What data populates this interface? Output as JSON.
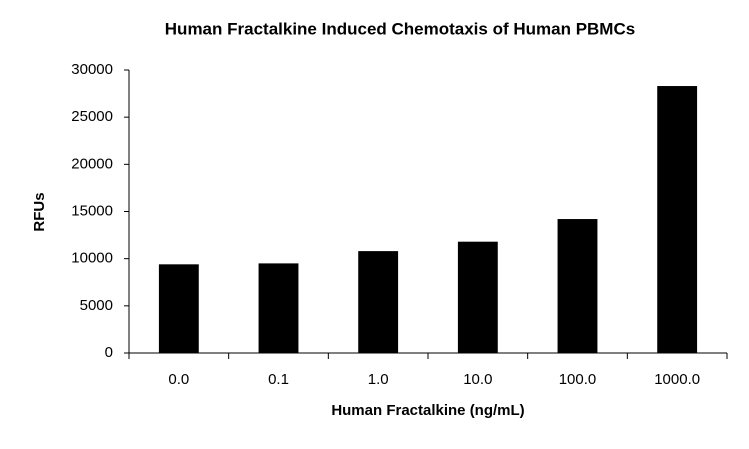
{
  "chart_data": {
    "type": "bar",
    "title": "Human Fractalkine Induced Chemotaxis of Human PBMCs",
    "x_label": "Human Fractalkine (ng/mL)",
    "y_label": "RFUs",
    "categories": [
      "0.0",
      "0.1",
      "1.0",
      "10.0",
      "100.0",
      "1000.0"
    ],
    "values": [
      9400,
      9500,
      10800,
      11800,
      14200,
      28300
    ],
    "color": "#000000",
    "ylim": [
      0,
      30000
    ],
    "yticks": [
      0,
      5000,
      10000,
      15000,
      20000,
      25000,
      30000
    ],
    "grid": false
  }
}
